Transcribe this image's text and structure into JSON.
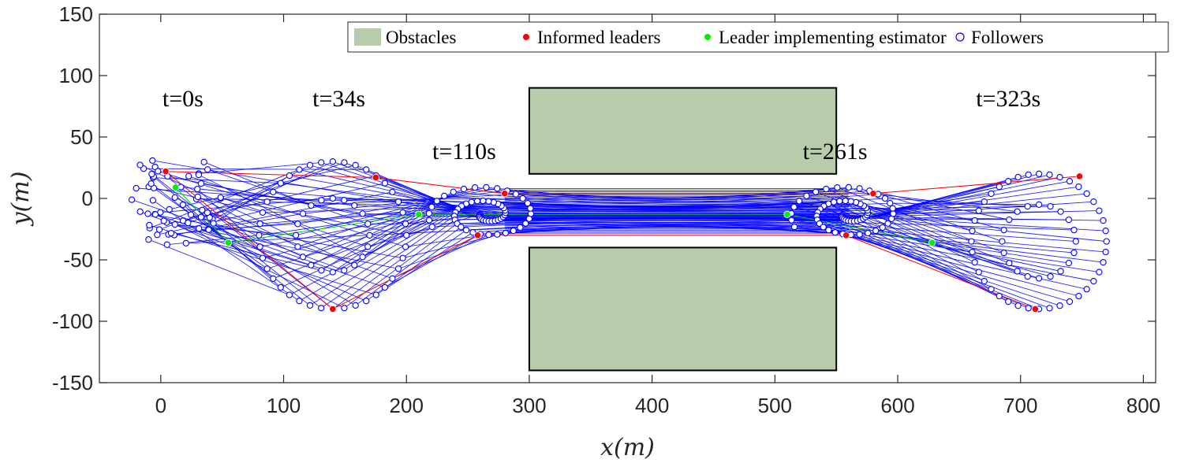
{
  "chart_data": {
    "type": "scatter",
    "title": "",
    "xlabel": "x(m)",
    "ylabel": "y(m)",
    "xlim": [
      -50,
      810
    ],
    "ylim": [
      -150,
      150
    ],
    "xticks": [
      0,
      100,
      200,
      300,
      400,
      500,
      600,
      700,
      800
    ],
    "yticks": [
      -150,
      -100,
      -50,
      0,
      50,
      100,
      150
    ],
    "xtick_labels": [
      "0",
      "100",
      "200",
      "300",
      "400",
      "500",
      "600",
      "700",
      "800"
    ],
    "ytick_labels": [
      "-150",
      "-100",
      "-50",
      "0",
      "50",
      "100",
      "150"
    ],
    "grid": false,
    "legend": {
      "placement": "top-right",
      "entries": [
        {
          "label": "Obstacles",
          "kind": "patch",
          "color": "#b8cbab"
        },
        {
          "label": "Informed leaders",
          "kind": "dot",
          "color": "#ff0000"
        },
        {
          "label": "Leader implementing estimator",
          "kind": "dot",
          "color": "#00ee00"
        },
        {
          "label": "Followers",
          "kind": "circle",
          "color": "#0000ff"
        }
      ]
    },
    "obstacles": [
      {
        "x": [
          300,
          550
        ],
        "y": [
          20,
          90
        ]
      },
      {
        "x": [
          300,
          550
        ],
        "y": [
          -140,
          -40
        ]
      }
    ],
    "annotations": [
      {
        "text": "t=0s",
        "x": 18,
        "y": 75
      },
      {
        "text": "t=34s",
        "x": 145,
        "y": 75
      },
      {
        "text": "t=110s",
        "x": 247,
        "y": 32
      },
      {
        "text": "t=261s",
        "x": 549,
        "y": 32
      },
      {
        "text": "t=323s",
        "x": 690,
        "y": 75
      }
    ],
    "formations": [
      {
        "time": "t=0s",
        "shape": "scatter",
        "center": [
          10,
          0
        ],
        "spread": 45,
        "informed_leaders": [
          [
            4,
            22
          ]
        ],
        "estimator_leaders": [
          [
            12,
            9
          ]
        ]
      },
      {
        "time": "t=34s",
        "shape": "ring",
        "center": [
          140,
          -30
        ],
        "radius": 60,
        "inner_radius": 30,
        "informed_leaders": [
          [
            175,
            17
          ],
          [
            140,
            -90
          ]
        ],
        "estimator_leaders": [
          [
            55,
            -36
          ]
        ]
      },
      {
        "time": "t=110s",
        "shape": "spiral",
        "center": [
          265,
          -13
        ],
        "radius": 50,
        "informed_leaders": [
          [
            280,
            4
          ],
          [
            258,
            -30
          ]
        ],
        "estimator_leaders": [
          [
            210,
            -13
          ]
        ]
      },
      {
        "time": "t=261s",
        "shape": "spiral",
        "center": [
          560,
          -13
        ],
        "radius": 50,
        "informed_leaders": [
          [
            580,
            4
          ],
          [
            558,
            -30
          ]
        ],
        "estimator_leaders": [
          [
            510,
            -13
          ]
        ]
      },
      {
        "time": "t=323s",
        "shape": "ring",
        "center": [
          715,
          -35
        ],
        "radius": 55,
        "inner_radius": 30,
        "informed_leaders": [
          [
            748,
            18
          ],
          [
            712,
            -90
          ]
        ],
        "estimator_leaders": [
          [
            628,
            -36
          ]
        ]
      }
    ],
    "trajectory_color": "#0000ff",
    "leader_trajectory_color": "#ff0000",
    "estimator_trajectory_color": "#00cc00"
  }
}
